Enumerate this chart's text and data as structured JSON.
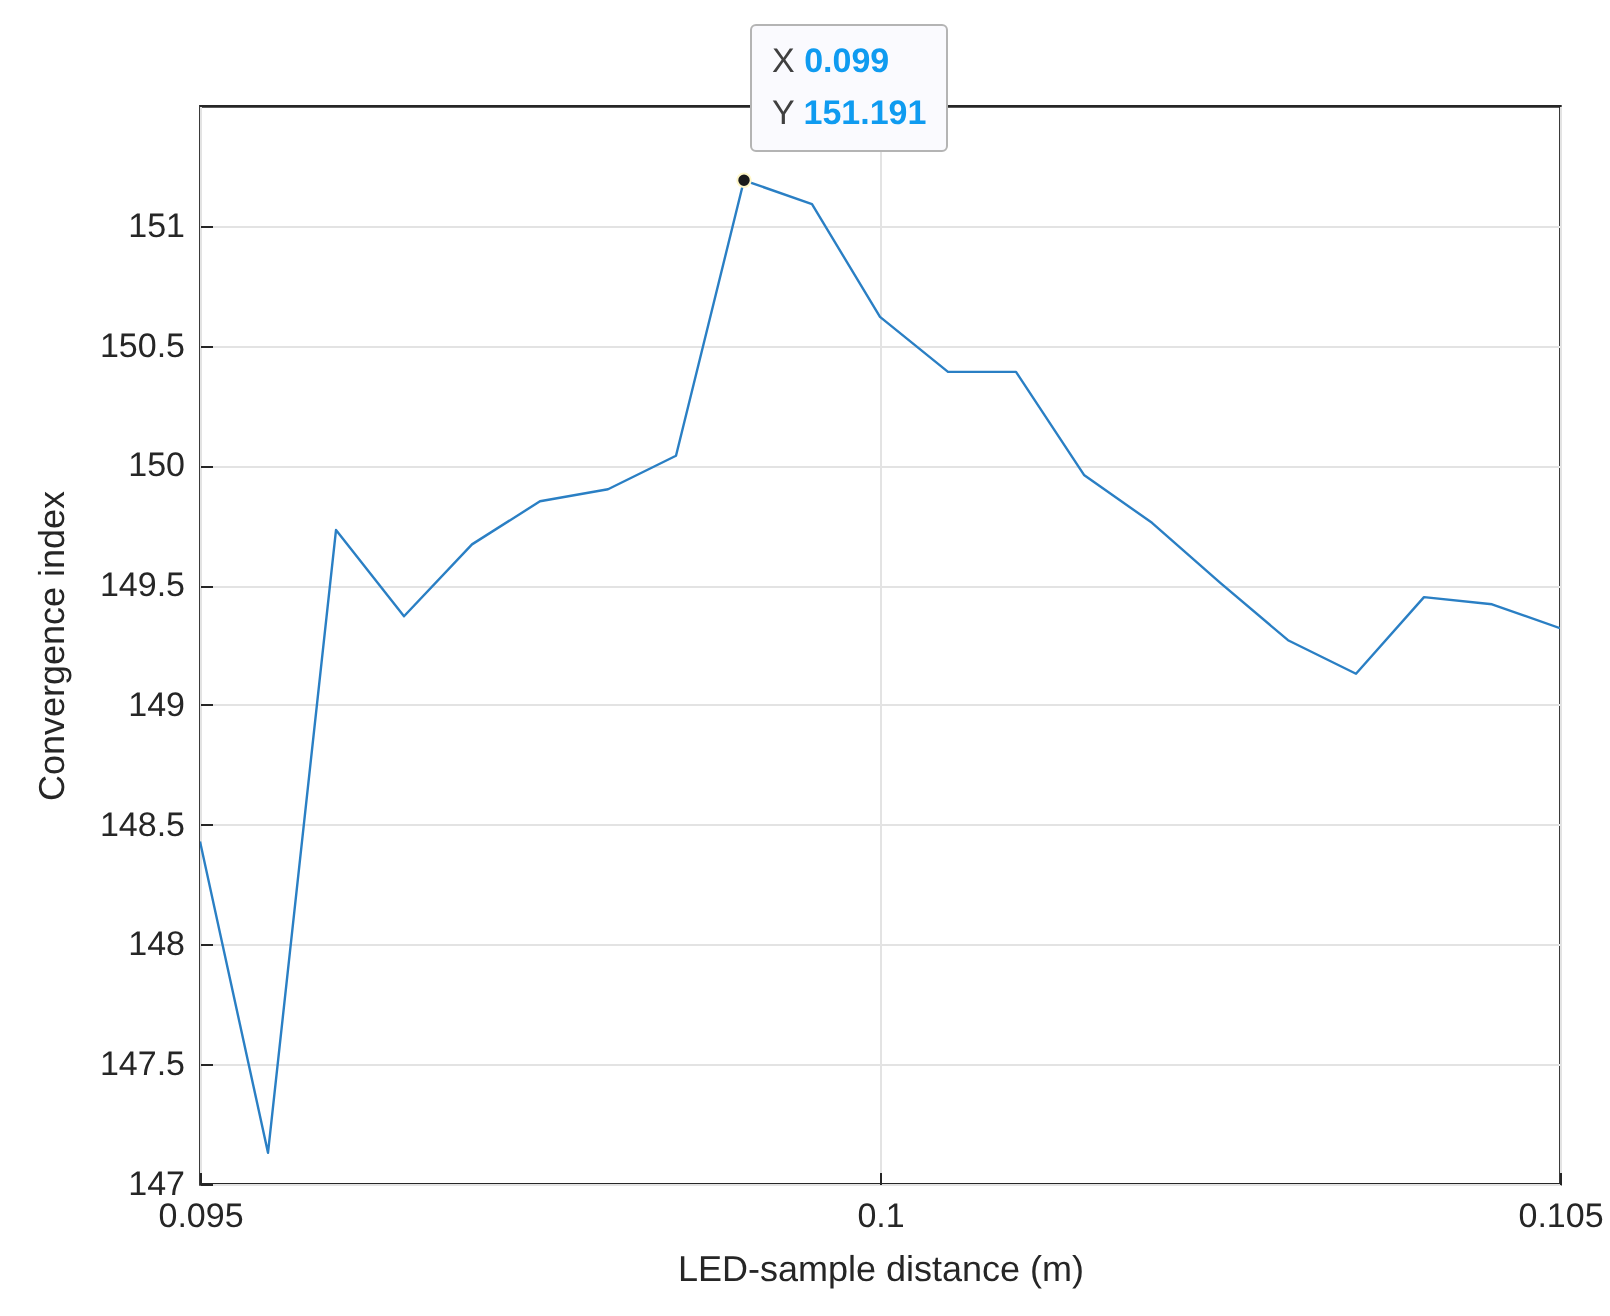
{
  "chart_data": {
    "type": "line",
    "xlabel": "LED-sample distance (m)",
    "ylabel": "Convergence index",
    "x": [
      0.095,
      0.0955,
      0.096,
      0.0965,
      0.097,
      0.0975,
      0.098,
      0.0985,
      0.099,
      0.0995,
      0.1,
      0.1005,
      0.101,
      0.1015,
      0.102,
      0.1025,
      0.103,
      0.1035,
      0.104,
      0.1045,
      0.105
    ],
    "series": [
      {
        "color": "#2a7fc4",
        "values": [
          148.43,
          147.13,
          149.73,
          149.37,
          149.67,
          149.85,
          149.9,
          150.04,
          151.19,
          151.09,
          150.62,
          150.39,
          150.39,
          149.96,
          149.76,
          149.51,
          149.27,
          149.13,
          149.45,
          149.42,
          149.32
        ]
      },
      {
        "type": "scatter",
        "marker": "circle",
        "color": "#1a1a1a",
        "x": [
          0.099
        ],
        "values": [
          151.19
        ]
      }
    ],
    "xlim": [
      0.095,
      0.105
    ],
    "xticks": [
      0.095,
      0.1,
      0.105
    ],
    "ylim": [
      147,
      151.5
    ],
    "yticks": [
      147,
      147.5,
      148,
      148.5,
      149,
      149.5,
      150,
      150.5,
      151
    ],
    "grid": true,
    "annotations": [
      "X 0.099",
      "Y 151.191"
    ]
  }
}
